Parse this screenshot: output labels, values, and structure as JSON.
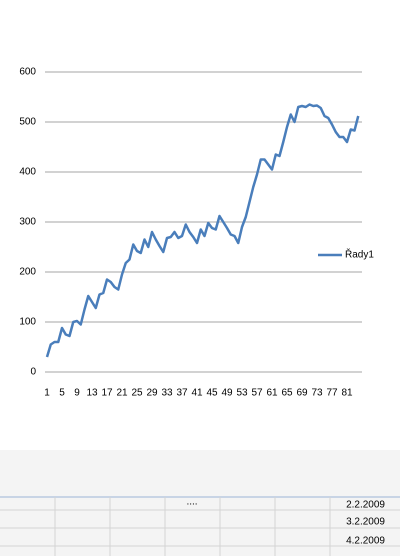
{
  "chart_data": {
    "type": "line",
    "categories": [
      1,
      null,
      null,
      null,
      5,
      null,
      null,
      null,
      9,
      null,
      null,
      null,
      13,
      null,
      null,
      null,
      17,
      null,
      null,
      null,
      21,
      null,
      null,
      null,
      25,
      null,
      null,
      null,
      29,
      null,
      null,
      null,
      33,
      null,
      null,
      null,
      37,
      null,
      null,
      null,
      41,
      null,
      null,
      null,
      45,
      null,
      null,
      null,
      49,
      null,
      null,
      null,
      53,
      null,
      null,
      null,
      57,
      null,
      null,
      null,
      61,
      null,
      null,
      null,
      65,
      null,
      null,
      null,
      69,
      null,
      null,
      null,
      73,
      null,
      null,
      null,
      77,
      null,
      null,
      null,
      81,
      null,
      null,
      null
    ],
    "series": [
      {
        "name": "Řady1",
        "color": "#4a7ebb",
        "values": [
          30,
          55,
          60,
          60,
          88,
          75,
          72,
          100,
          102,
          95,
          125,
          152,
          140,
          128,
          155,
          158,
          185,
          180,
          170,
          165,
          195,
          218,
          225,
          255,
          242,
          238,
          265,
          250,
          280,
          265,
          252,
          240,
          268,
          270,
          280,
          268,
          272,
          295,
          280,
          270,
          258,
          285,
          272,
          298,
          288,
          285,
          312,
          300,
          288,
          275,
          272,
          258,
          290,
          310,
          340,
          370,
          395,
          425,
          425,
          415,
          405,
          435,
          432,
          460,
          490,
          515,
          500,
          530,
          532,
          530,
          535,
          532,
          533,
          528,
          512,
          508,
          495,
          480,
          470,
          470,
          460,
          485,
          483,
          512
        ]
      }
    ],
    "ylim": [
      0,
      600
    ],
    "yticks": [
      0,
      100,
      200,
      300,
      400,
      500,
      600
    ],
    "grid": true,
    "legend": "right"
  },
  "sheet": {
    "cells": [
      "2.2.2009",
      "3.2.2009",
      "4.2.2009"
    ]
  }
}
